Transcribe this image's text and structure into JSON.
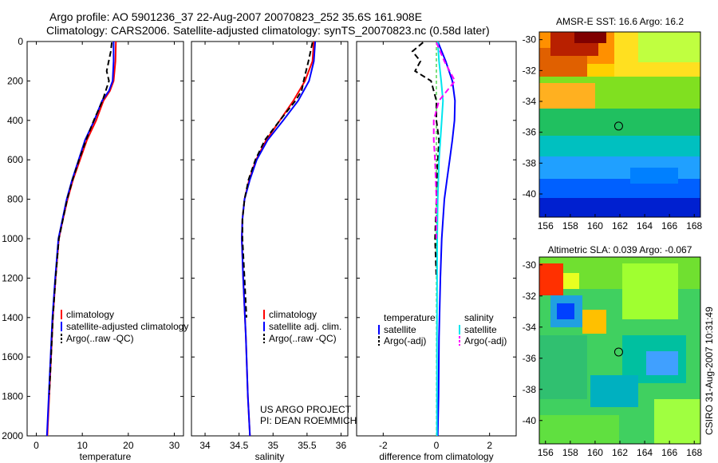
{
  "header": {
    "line1": "Argo profile: AO 5901236_37 22-Aug-2007 20070823_252 35.6S 161.908E",
    "line2": "Climatology: CARS2006. Satellite-adjusted climatology: synTS_20070823.nc (0.58d later)"
  },
  "footer": {
    "project": "US ARGO PROJECT",
    "pi": "PI: DEAN ROEMMICH",
    "stamp": "CSIRO 31-Aug-2007 10:31:49"
  },
  "colors": {
    "climatology": "#ff0000",
    "satellite": "#0000ff",
    "argo": "#000000",
    "salinity_sat": "#00e5ee",
    "salinity_argo": "#ff00ff"
  },
  "chart_data": [
    {
      "type": "line",
      "xlabel": "temperature",
      "ylim": [
        2000,
        0
      ],
      "xlim": [
        -2,
        32
      ],
      "xticks": [
        0,
        10,
        20,
        30
      ],
      "yticks": [
        0,
        200,
        400,
        600,
        800,
        1000,
        1200,
        1400,
        1600,
        1800,
        2000
      ],
      "legend": [
        "climatology",
        "satellite-adjusted climatology",
        "Argo(..raw -QC)"
      ],
      "series": [
        {
          "name": "climatology",
          "style": "solid",
          "color": "#ff0000",
          "x": [
            17.3,
            17.2,
            16.8,
            16.0,
            14.6,
            13.0,
            11.0,
            9.5,
            8.0,
            6.8,
            5.8,
            4.9,
            4.2,
            3.6,
            3.2,
            2.8,
            2.5,
            2.4
          ],
          "y": [
            0,
            100,
            200,
            250,
            300,
            400,
            500,
            600,
            700,
            800,
            900,
            1000,
            1200,
            1400,
            1600,
            1800,
            1950,
            2000
          ]
        },
        {
          "name": "satellite-adjusted climatology",
          "style": "solid",
          "color": "#0000ff",
          "x": [
            16.8,
            16.8,
            16.6,
            15.8,
            14.3,
            12.6,
            10.6,
            9.2,
            7.8,
            6.6,
            5.7,
            4.8,
            4.1,
            3.5,
            3.1,
            2.7,
            2.4,
            2.3
          ],
          "y": [
            0,
            100,
            200,
            250,
            300,
            400,
            500,
            600,
            700,
            800,
            900,
            1000,
            1200,
            1400,
            1600,
            1800,
            1950,
            2000
          ]
        },
        {
          "name": "Argo(..raw -QC)",
          "style": "dashed",
          "color": "#000000",
          "x": [
            16.4,
            16.2,
            15.3,
            15.8,
            14.4,
            12.5,
            10.8,
            9.3,
            7.9,
            6.7,
            5.8,
            4.9,
            4.2,
            3.6,
            3.2,
            2.8
          ],
          "y": [
            5,
            50,
            150,
            200,
            300,
            400,
            500,
            600,
            700,
            800,
            900,
            1000,
            1200,
            1400,
            1600,
            1790
          ]
        }
      ]
    },
    {
      "type": "line",
      "xlabel": "salinity",
      "ylim": [
        2000,
        0
      ],
      "xlim": [
        33.8,
        36.1
      ],
      "xticks": [
        34,
        34.5,
        35,
        35.5,
        36
      ],
      "legend": [
        "climatology",
        "satellite adj. clim.",
        "Argo(..raw -QC)"
      ],
      "series": [
        {
          "name": "climatology",
          "style": "solid",
          "color": "#ff0000",
          "x": [
            35.6,
            35.58,
            35.47,
            35.3,
            35.1,
            34.9,
            34.75,
            34.65,
            34.58,
            34.55,
            34.54,
            34.56,
            34.6,
            34.63,
            34.66
          ],
          "y": [
            0,
            100,
            200,
            300,
            400,
            500,
            600,
            700,
            800,
            900,
            1000,
            1200,
            1500,
            1800,
            2000
          ]
        },
        {
          "name": "satellite adj. clim.",
          "style": "solid",
          "color": "#0000ff",
          "x": [
            35.62,
            35.6,
            35.53,
            35.37,
            35.15,
            34.92,
            34.76,
            34.66,
            34.58,
            34.55,
            34.54,
            34.56,
            34.6,
            34.63,
            34.66
          ],
          "y": [
            0,
            100,
            200,
            300,
            400,
            500,
            600,
            700,
            800,
            900,
            1000,
            1200,
            1500,
            1800,
            2000
          ]
        },
        {
          "name": "Argo(..raw -QC)",
          "style": "dashed",
          "color": "#000000",
          "x": [
            35.58,
            35.52,
            35.45,
            35.42,
            35.33,
            35.1,
            34.88,
            34.74,
            34.64,
            34.58,
            34.55,
            34.55,
            34.58,
            34.61
          ],
          "y": [
            5,
            100,
            200,
            250,
            300,
            400,
            500,
            600,
            700,
            800,
            900,
            1000,
            1200,
            1400
          ]
        }
      ]
    },
    {
      "type": "line",
      "xlabel": "difference from climatology",
      "ylim": [
        2000,
        0
      ],
      "xlim": [
        -3,
        3
      ],
      "xticks": [
        -2,
        0,
        2
      ],
      "legend_temperature_heading": "temperature",
      "legend_salinity_heading": "salinity",
      "legend": [
        "satellite",
        "Argo(-adj)",
        "satellite",
        "Argo(-adj)"
      ],
      "series": [
        {
          "name": "satellite",
          "group": "temperature",
          "style": "solid",
          "color": "#0000ff",
          "x": [
            0.05,
            0.35,
            0.6,
            0.7,
            0.68,
            0.6,
            0.5,
            0.4,
            0.3,
            0.2,
            0.15,
            0.1,
            0.08,
            0.05
          ],
          "y": [
            0,
            100,
            200,
            300,
            400,
            500,
            600,
            700,
            800,
            1000,
            1200,
            1500,
            1800,
            2000
          ]
        },
        {
          "name": "Argo(-adj)",
          "group": "temperature",
          "style": "dashed",
          "color": "#000000",
          "x": [
            -0.5,
            -0.9,
            -0.6,
            -0.8,
            -0.2,
            0.0,
            0.0,
            0.1,
            0.05,
            0.0,
            -0.05,
            0.0
          ],
          "y": [
            5,
            50,
            100,
            150,
            200,
            300,
            400,
            500,
            600,
            800,
            1000,
            1200
          ]
        },
        {
          "name": "satellite",
          "group": "salinity",
          "style": "solid",
          "color": "#00e5ee",
          "x": [
            0.05,
            0.1,
            0.18,
            0.25,
            0.2,
            0.15,
            0.1,
            0.05,
            0.03,
            0.02,
            0.02
          ],
          "y": [
            0,
            100,
            200,
            300,
            400,
            500,
            600,
            800,
            1000,
            1500,
            2000
          ]
        },
        {
          "name": "Argo(-adj)",
          "group": "salinity",
          "style": "dashed",
          "color": "#ff00ff",
          "x": [
            0.0,
            0.3,
            0.7,
            0.1,
            -0.1,
            -0.1,
            -0.05,
            0.0,
            0.0
          ],
          "y": [
            5,
            100,
            200,
            300,
            400,
            500,
            600,
            800,
            1000
          ]
        }
      ]
    },
    {
      "type": "heatmap",
      "title": "AMSR-E SST: 16.6 Argo: 16.2",
      "xlim": [
        155.5,
        168.5
      ],
      "ylim": [
        -41.5,
        -29.5
      ],
      "xticks": [
        156,
        158,
        160,
        162,
        164,
        166,
        168
      ],
      "yticks": [
        -30,
        -32,
        -34,
        -36,
        -38,
        -40
      ],
      "marker": {
        "lon": 161.9,
        "lat": -35.6
      }
    },
    {
      "type": "heatmap",
      "title": "Altimetric SLA: 0.039 Argo: -0.067",
      "xlim": [
        155.5,
        168.5
      ],
      "ylim": [
        -41.5,
        -29.5
      ],
      "xticks": [
        156,
        158,
        160,
        162,
        164,
        166,
        168
      ],
      "yticks": [
        -30,
        -32,
        -34,
        -36,
        -38,
        -40
      ],
      "marker": {
        "lon": 161.9,
        "lat": -35.6
      }
    }
  ]
}
